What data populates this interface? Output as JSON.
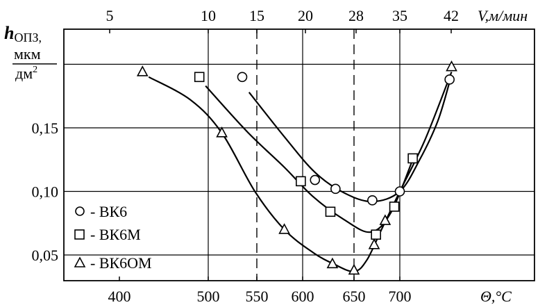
{
  "chart_data": {
    "type": "scatter",
    "title": "",
    "x": {
      "label_bottom": "Θ,°C",
      "ticks_bottom": [
        "400",
        "500",
        "550",
        "600",
        "650",
        "700"
      ],
      "label_top": "V,м/мин",
      "ticks_top": [
        "5",
        "10",
        "15",
        "20",
        "28",
        "35",
        "42"
      ],
      "xlim": [
        355,
        760
      ]
    },
    "y": {
      "label_main": "h",
      "label_sub": "ОПЗ,",
      "label_unit_num": "мкм",
      "label_unit_den": "дм",
      "label_unit_exp": "2",
      "ticks": [
        "0,05",
        "0,10",
        "0,15"
      ],
      "ylim": [
        0.033,
        0.2
      ]
    },
    "gridlines_y": [
      0.05,
      0.1,
      0.15,
      0.2
    ],
    "gridlines_x_solid": [
      500,
      600,
      700
    ],
    "gridlines_x_dashed": [
      550,
      650
    ],
    "legend_position": "bottom-left",
    "series": [
      {
        "name": "- ВК6",
        "marker": "circle",
        "points": [
          [
            535,
            0.19
          ],
          [
            612,
            0.109
          ],
          [
            632,
            0.102
          ],
          [
            670,
            0.093
          ],
          [
            700,
            0.1
          ],
          [
            750,
            0.188
          ]
        ],
        "curve": [
          [
            542,
            0.178
          ],
          [
            580,
            0.143
          ],
          [
            612,
            0.115
          ],
          [
            640,
            0.099
          ],
          [
            670,
            0.092
          ],
          [
            700,
            0.1
          ],
          [
            720,
            0.125
          ],
          [
            738,
            0.155
          ],
          [
            750,
            0.186
          ]
        ]
      },
      {
        "name": "- ВК6М",
        "marker": "square",
        "points": [
          [
            490,
            0.19
          ],
          [
            598,
            0.108
          ],
          [
            627,
            0.084
          ],
          [
            674,
            0.066
          ],
          [
            694,
            0.088
          ],
          [
            713,
            0.126
          ]
        ],
        "curve": [
          [
            497,
            0.183
          ],
          [
            540,
            0.147
          ],
          [
            580,
            0.119
          ],
          [
            610,
            0.096
          ],
          [
            640,
            0.078
          ],
          [
            668,
            0.068
          ],
          [
            690,
            0.083
          ],
          [
            713,
            0.125
          ]
        ]
      },
      {
        "name": "- ВК6ОМ",
        "marker": "triangle",
        "points": [
          [
            426,
            0.194
          ],
          [
            514,
            0.146
          ],
          [
            580,
            0.07
          ],
          [
            629,
            0.043
          ],
          [
            650,
            0.038
          ],
          [
            672,
            0.058
          ],
          [
            684,
            0.077
          ],
          [
            752,
            0.198
          ]
        ],
        "curve": [
          [
            433,
            0.19
          ],
          [
            480,
            0.172
          ],
          [
            514,
            0.146
          ],
          [
            548,
            0.1
          ],
          [
            580,
            0.07
          ],
          [
            610,
            0.052
          ],
          [
            630,
            0.043
          ],
          [
            650,
            0.037
          ],
          [
            664,
            0.046
          ],
          [
            680,
            0.07
          ],
          [
            700,
            0.1
          ],
          [
            725,
            0.14
          ],
          [
            752,
            0.194
          ]
        ]
      }
    ]
  }
}
